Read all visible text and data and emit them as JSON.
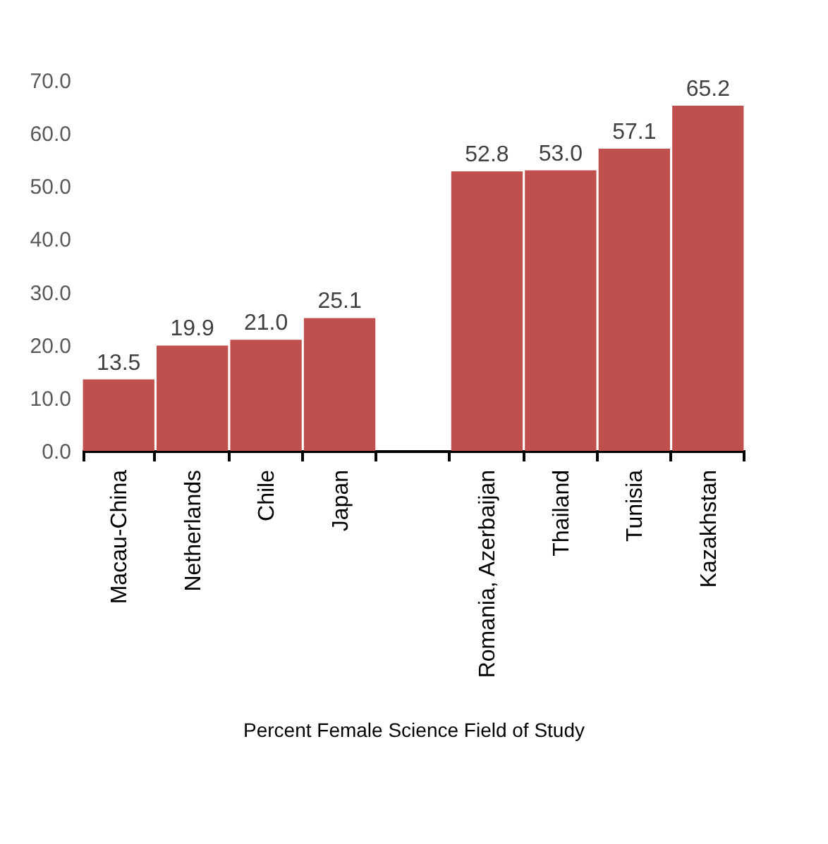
{
  "chart_data": {
    "type": "bar",
    "xlabel": "Percent Female Science Field of Study",
    "categories": [
      "Macau-China",
      "Netherlands",
      "Chile",
      "Japan",
      null,
      "Romania, Azerbaijan",
      "Thailand",
      "Tunisia",
      "Kazakhstan"
    ],
    "values": [
      13.5,
      19.9,
      21.0,
      25.1,
      null,
      52.8,
      53.0,
      57.1,
      65.2
    ],
    "value_labels": [
      "13.5",
      "19.9",
      "21.0",
      "25.1",
      null,
      "52.8",
      "53.0",
      "57.1",
      "65.2"
    ],
    "color": "#c0504d",
    "ylim": [
      0,
      70
    ],
    "yticks": [
      {
        "value": 0,
        "label": "0.0"
      },
      {
        "value": 10,
        "label": "10.0"
      },
      {
        "value": 20,
        "label": "20.0"
      },
      {
        "value": 30,
        "label": "30.0"
      },
      {
        "value": 40,
        "label": "40.0"
      },
      {
        "value": 50,
        "label": "50.0"
      },
      {
        "value": 60,
        "label": "60.0"
      },
      {
        "value": 70,
        "label": "70.0"
      }
    ],
    "grid": false
  }
}
